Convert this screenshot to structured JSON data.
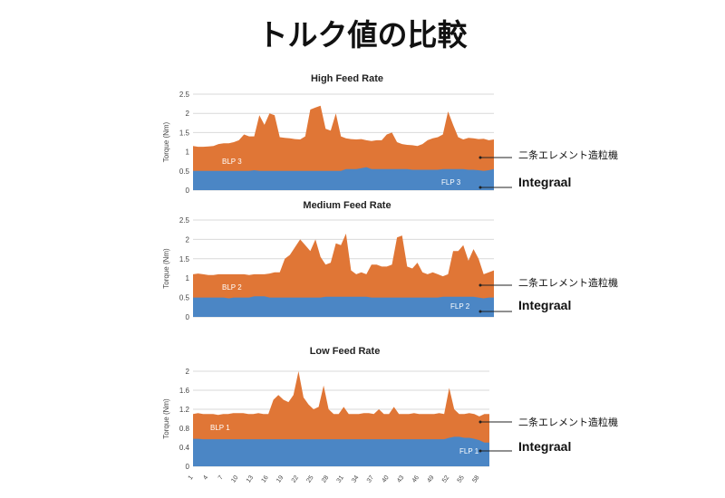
{
  "page": {
    "title": "トルク値の比較"
  },
  "colors": {
    "blp": "#e07636",
    "flp": "#4b86c5",
    "grid": "#d9d9d9"
  },
  "x_ticks": [
    "1",
    "4",
    "7",
    "10",
    "13",
    "16",
    "19",
    "22",
    "25",
    "28",
    "31",
    "34",
    "37",
    "40",
    "43",
    "46",
    "49",
    "52",
    "55",
    "58"
  ],
  "chart_data": [
    {
      "type": "area",
      "title": "High Feed Rate",
      "ylabel": "Torque (Nm)",
      "ylim": [
        0,
        2.5
      ],
      "yticks": [
        "0",
        "0.5",
        "1",
        "1.5",
        "2",
        "2.5"
      ],
      "ytick_values": [
        0,
        0.5,
        1,
        1.5,
        2,
        2.5
      ],
      "x": [
        1,
        2,
        3,
        4,
        5,
        6,
        7,
        8,
        9,
        10,
        11,
        12,
        13,
        14,
        15,
        16,
        17,
        18,
        19,
        20,
        21,
        22,
        23,
        24,
        25,
        26,
        27,
        28,
        29,
        30,
        31,
        32,
        33,
        34,
        35,
        36,
        37,
        38,
        39,
        40,
        41,
        42,
        43,
        44,
        45,
        46,
        47,
        48,
        49,
        50,
        51,
        52,
        53,
        54,
        55,
        56,
        57,
        58,
        59,
        60
      ],
      "series": [
        {
          "name": "BLP 3",
          "values": [
            1.15,
            1.13,
            1.13,
            1.14,
            1.15,
            1.2,
            1.22,
            1.22,
            1.25,
            1.3,
            1.45,
            1.4,
            1.4,
            1.95,
            1.7,
            2.0,
            1.95,
            1.38,
            1.36,
            1.35,
            1.33,
            1.32,
            1.4,
            2.1,
            2.15,
            2.2,
            1.6,
            1.55,
            2.0,
            1.4,
            1.35,
            1.33,
            1.32,
            1.33,
            1.3,
            1.28,
            1.3,
            1.3,
            1.45,
            1.5,
            1.25,
            1.2,
            1.18,
            1.17,
            1.15,
            1.2,
            1.3,
            1.35,
            1.38,
            1.45,
            2.05,
            1.7,
            1.38,
            1.32,
            1.36,
            1.35,
            1.33,
            1.34,
            1.3,
            1.32
          ]
        },
        {
          "name": "FLP 3",
          "values": [
            0.5,
            0.5,
            0.5,
            0.5,
            0.5,
            0.5,
            0.5,
            0.5,
            0.5,
            0.5,
            0.5,
            0.5,
            0.52,
            0.5,
            0.5,
            0.5,
            0.5,
            0.5,
            0.5,
            0.5,
            0.5,
            0.5,
            0.5,
            0.5,
            0.5,
            0.5,
            0.5,
            0.5,
            0.5,
            0.5,
            0.55,
            0.55,
            0.55,
            0.57,
            0.6,
            0.55,
            0.55,
            0.55,
            0.55,
            0.55,
            0.55,
            0.55,
            0.55,
            0.53,
            0.53,
            0.53,
            0.53,
            0.53,
            0.53,
            0.55,
            0.55,
            0.55,
            0.55,
            0.55,
            0.53,
            0.53,
            0.52,
            0.5,
            0.52,
            0.55
          ]
        }
      ],
      "series_labels": [
        "BLP 3",
        "FLP 3"
      ],
      "annotations": [
        "二条エレメント造粒機",
        "Integraal"
      ]
    },
    {
      "type": "area",
      "title": "Medium Feed Rate",
      "ylabel": "Torque (Nm)",
      "ylim": [
        0,
        2.5
      ],
      "yticks": [
        "0",
        "0.5",
        "1",
        "1.5",
        "2",
        "2.5"
      ],
      "ytick_values": [
        0,
        0.5,
        1,
        1.5,
        2,
        2.5
      ],
      "x": [
        1,
        2,
        3,
        4,
        5,
        6,
        7,
        8,
        9,
        10,
        11,
        12,
        13,
        14,
        15,
        16,
        17,
        18,
        19,
        20,
        21,
        22,
        23,
        24,
        25,
        26,
        27,
        28,
        29,
        30,
        31,
        32,
        33,
        34,
        35,
        36,
        37,
        38,
        39,
        40,
        41,
        42,
        43,
        44,
        45,
        46,
        47,
        48,
        49,
        50,
        51,
        52,
        53,
        54,
        55,
        56,
        57,
        58,
        59,
        60
      ],
      "series": [
        {
          "name": "BLP 2",
          "values": [
            1.1,
            1.12,
            1.1,
            1.08,
            1.08,
            1.1,
            1.1,
            1.1,
            1.1,
            1.1,
            1.1,
            1.08,
            1.1,
            1.1,
            1.1,
            1.12,
            1.15,
            1.15,
            1.5,
            1.6,
            1.8,
            2.0,
            1.85,
            1.7,
            2.0,
            1.55,
            1.35,
            1.4,
            1.9,
            1.85,
            2.15,
            1.2,
            1.1,
            1.15,
            1.1,
            1.35,
            1.35,
            1.3,
            1.3,
            1.35,
            2.05,
            2.1,
            1.3,
            1.25,
            1.4,
            1.15,
            1.1,
            1.15,
            1.1,
            1.05,
            1.1,
            1.7,
            1.7,
            1.85,
            1.45,
            1.75,
            1.5,
            1.1,
            1.15,
            1.2
          ]
        },
        {
          "name": "FLP 2",
          "values": [
            0.5,
            0.5,
            0.5,
            0.5,
            0.5,
            0.5,
            0.5,
            0.48,
            0.5,
            0.5,
            0.5,
            0.5,
            0.53,
            0.53,
            0.53,
            0.5,
            0.5,
            0.5,
            0.5,
            0.5,
            0.5,
            0.5,
            0.5,
            0.5,
            0.5,
            0.5,
            0.52,
            0.52,
            0.52,
            0.52,
            0.52,
            0.52,
            0.52,
            0.52,
            0.52,
            0.5,
            0.5,
            0.5,
            0.5,
            0.5,
            0.5,
            0.5,
            0.5,
            0.5,
            0.5,
            0.5,
            0.5,
            0.5,
            0.5,
            0.52,
            0.52,
            0.52,
            0.52,
            0.52,
            0.52,
            0.52,
            0.5,
            0.48,
            0.5,
            0.5
          ]
        }
      ],
      "series_labels": [
        "BLP 2",
        "FLP 2"
      ],
      "annotations": [
        "二条エレメント造粒機",
        "Integraal"
      ]
    },
    {
      "type": "area",
      "title": "Low Feed Rate",
      "ylabel": "Torque (Nm)",
      "ylim": [
        0,
        2
      ],
      "yticks": [
        "0",
        "0.4",
        "0.8",
        "1.2",
        "1.6",
        "2"
      ],
      "ytick_values": [
        0,
        0.4,
        0.8,
        1.2,
        1.6,
        2
      ],
      "x": [
        1,
        2,
        3,
        4,
        5,
        6,
        7,
        8,
        9,
        10,
        11,
        12,
        13,
        14,
        15,
        16,
        17,
        18,
        19,
        20,
        21,
        22,
        23,
        24,
        25,
        26,
        27,
        28,
        29,
        30,
        31,
        32,
        33,
        34,
        35,
        36,
        37,
        38,
        39,
        40,
        41,
        42,
        43,
        44,
        45,
        46,
        47,
        48,
        49,
        50,
        51,
        52,
        53,
        54,
        55,
        56,
        57,
        58,
        59,
        60
      ],
      "series": [
        {
          "name": "BLP 1",
          "values": [
            1.1,
            1.12,
            1.1,
            1.1,
            1.1,
            1.08,
            1.1,
            1.1,
            1.12,
            1.12,
            1.12,
            1.1,
            1.1,
            1.12,
            1.1,
            1.1,
            1.4,
            1.5,
            1.4,
            1.35,
            1.5,
            2.0,
            1.45,
            1.3,
            1.2,
            1.25,
            1.7,
            1.2,
            1.1,
            1.1,
            1.25,
            1.1,
            1.1,
            1.1,
            1.12,
            1.12,
            1.1,
            1.2,
            1.1,
            1.1,
            1.25,
            1.1,
            1.1,
            1.1,
            1.12,
            1.1,
            1.1,
            1.1,
            1.1,
            1.12,
            1.1,
            1.65,
            1.2,
            1.1,
            1.1,
            1.12,
            1.1,
            1.05,
            1.1,
            1.1
          ]
        },
        {
          "name": "FLP 1",
          "values": [
            0.58,
            0.58,
            0.57,
            0.57,
            0.57,
            0.57,
            0.57,
            0.57,
            0.57,
            0.57,
            0.57,
            0.57,
            0.57,
            0.57,
            0.57,
            0.57,
            0.57,
            0.57,
            0.57,
            0.57,
            0.57,
            0.57,
            0.57,
            0.57,
            0.57,
            0.57,
            0.57,
            0.57,
            0.57,
            0.57,
            0.57,
            0.57,
            0.57,
            0.57,
            0.57,
            0.57,
            0.57,
            0.57,
            0.57,
            0.57,
            0.57,
            0.57,
            0.57,
            0.57,
            0.57,
            0.57,
            0.57,
            0.57,
            0.57,
            0.57,
            0.57,
            0.6,
            0.62,
            0.62,
            0.6,
            0.6,
            0.58,
            0.55,
            0.5,
            0.5
          ]
        }
      ],
      "series_labels": [
        "BLP 1",
        "FLP 1"
      ],
      "annotations": [
        "二条エレメント造粒機",
        "Integraal"
      ]
    }
  ]
}
